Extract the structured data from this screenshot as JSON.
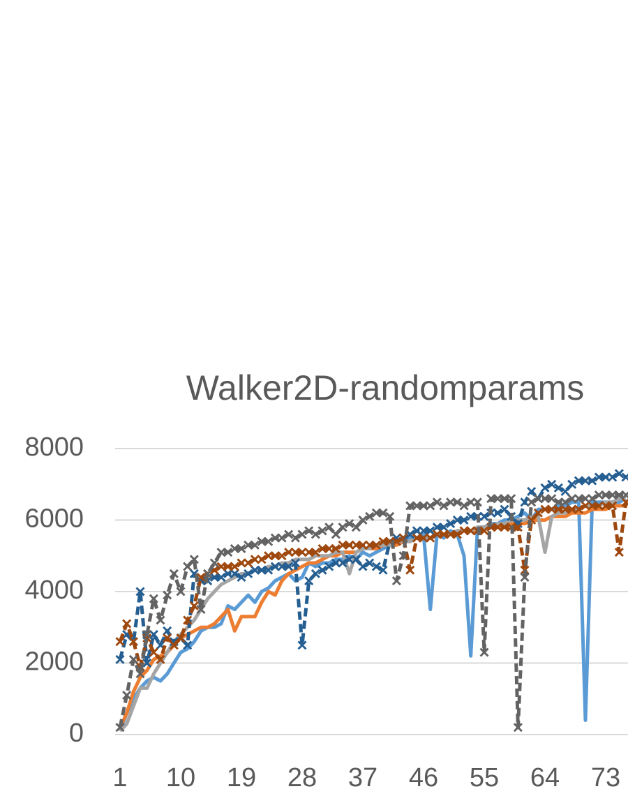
{
  "chart_data": {
    "type": "line",
    "title": "Walker2D-randomparams",
    "categories": [
      1,
      null,
      null,
      null,
      null,
      null,
      null,
      null,
      null,
      10,
      null,
      null,
      null,
      null,
      null,
      null,
      null,
      null,
      19,
      null,
      null,
      null,
      null,
      null,
      null,
      null,
      null,
      28,
      null,
      null,
      null,
      null,
      null,
      null,
      null,
      null,
      37,
      null,
      null,
      null,
      null,
      null,
      null,
      null,
      null,
      46,
      null,
      null,
      null,
      null,
      null,
      null,
      null,
      null,
      55,
      null,
      null,
      null,
      null,
      null,
      null,
      null,
      null,
      64,
      null,
      null,
      null,
      null,
      null,
      null,
      null,
      null,
      73,
      null,
      null,
      null
    ],
    "ylim": [
      0,
      8000
    ],
    "yticks": [
      0,
      2000,
      4000,
      6000,
      8000
    ],
    "grid": true,
    "series": [
      {
        "color": "#5b9bd5",
        "dashed": false,
        "marker": false,
        "values": [
          100,
          600,
          1000,
          1300,
          1500,
          1600,
          1500,
          1700,
          2000,
          2300,
          2400,
          2600,
          2900,
          3000,
          3000,
          3100,
          3600,
          3500,
          3700,
          3900,
          3700,
          4000,
          4100,
          4300,
          4400,
          4500,
          4300,
          4400,
          4800,
          4700,
          4800,
          4800,
          4900,
          4900,
          5000,
          4900,
          5100,
          5000,
          5100,
          5200,
          5300,
          5400,
          5500,
          5500,
          5500,
          5600,
          3500,
          5600,
          5500,
          5700,
          5600,
          5000,
          2200,
          5800,
          5800,
          5900,
          5900,
          6000,
          6000,
          6100,
          6200,
          6000,
          6300,
          6300,
          6300,
          6400,
          6400,
          6500,
          6500,
          400,
          6500,
          6500,
          6500,
          6500,
          6500,
          6600
        ]
      },
      {
        "color": "#ed7d31",
        "dashed": false,
        "marker": false,
        "values": [
          200,
          600,
          1200,
          1600,
          1800,
          2100,
          2200,
          2300,
          2500,
          2700,
          2800,
          2900,
          3000,
          3000,
          3100,
          3300,
          3500,
          2900,
          3300,
          3300,
          3300,
          3700,
          4000,
          3900,
          4300,
          4500,
          4600,
          4700,
          4800,
          4800,
          4900,
          5000,
          5000,
          5100,
          5100,
          5100,
          5200,
          5200,
          5200,
          5300,
          5300,
          5300,
          5400,
          5400,
          5500,
          5500,
          5500,
          5600,
          5600,
          5600,
          5700,
          5700,
          5700,
          5700,
          5800,
          5800,
          5800,
          5800,
          5900,
          5900,
          5900,
          6000,
          6000,
          6000,
          6100,
          6100,
          6100,
          6200,
          6200,
          6200,
          6300,
          6300,
          6300,
          6400,
          6400,
          6400
        ]
      },
      {
        "color": "#a5a5a5",
        "dashed": false,
        "marker": false,
        "values": [
          100,
          300,
          800,
          1300,
          1300,
          1700,
          2000,
          2300,
          2600,
          2800,
          3000,
          3200,
          3500,
          3800,
          4000,
          4200,
          4300,
          4400,
          4500,
          4500,
          4600,
          4600,
          4700,
          4700,
          4800,
          4800,
          4900,
          4900,
          4900,
          5000,
          5000,
          5000,
          5100,
          5100,
          4500,
          5100,
          5200,
          5200,
          5300,
          5300,
          5300,
          5400,
          5400,
          5400,
          5500,
          5500,
          5500,
          5600,
          5600,
          5600,
          5700,
          5700,
          5700,
          5800,
          5800,
          5800,
          5900,
          5900,
          6000,
          6000,
          6000,
          6100,
          6100,
          5100,
          6100,
          6200,
          6200,
          6300,
          6300,
          6400,
          6400,
          6400,
          6500,
          6500,
          6600,
          6600
        ]
      },
      {
        "color": "#255e91",
        "dashed": true,
        "marker": true,
        "values": [
          2100,
          2800,
          2600,
          4000,
          2000,
          2800,
          2500,
          2900,
          2600,
          2700,
          2500,
          4500,
          4300,
          4300,
          4400,
          4400,
          4500,
          4500,
          4400,
          4500,
          4600,
          4600,
          4600,
          4700,
          4700,
          4700,
          4800,
          2500,
          4300,
          4500,
          4600,
          4700,
          4800,
          4800,
          4900,
          4900,
          4700,
          4800,
          4700,
          4600,
          5400,
          5500,
          5500,
          5600,
          5700,
          5700,
          5700,
          5800,
          5800,
          5900,
          6000,
          6000,
          6100,
          6100,
          6100,
          6200,
          6200,
          6300,
          6100,
          5900,
          6500,
          6800,
          6600,
          6900,
          7000,
          6900,
          6800,
          7000,
          7100,
          7100,
          7100,
          7200,
          7200,
          7200,
          7300,
          7200
        ]
      },
      {
        "color": "#9e480e",
        "dashed": true,
        "marker": true,
        "values": [
          2600,
          3100,
          2600,
          1900,
          2700,
          2300,
          2100,
          2700,
          2500,
          2700,
          3200,
          3600,
          4400,
          4500,
          4600,
          4700,
          4700,
          4700,
          4800,
          4800,
          4900,
          4900,
          5000,
          5000,
          5000,
          5100,
          5100,
          5100,
          5100,
          5100,
          5200,
          5200,
          5200,
          5300,
          5300,
          5300,
          5300,
          5300,
          5300,
          5400,
          5400,
          5400,
          5500,
          4600,
          5500,
          5500,
          5500,
          5600,
          5600,
          5600,
          5600,
          5700,
          5700,
          5700,
          5700,
          5800,
          5800,
          5800,
          5800,
          5800,
          4600,
          6000,
          6200,
          6300,
          6300,
          6300,
          6300,
          6300,
          6300,
          6400,
          6400,
          6400,
          6400,
          6400,
          5100,
          6500
        ]
      },
      {
        "color": "#636363",
        "dashed": true,
        "marker": true,
        "values": [
          200,
          1100,
          2100,
          1700,
          2800,
          3800,
          3200,
          3900,
          4500,
          4000,
          4700,
          4900,
          3500,
          4500,
          4800,
          5100,
          5100,
          5200,
          5200,
          5300,
          5300,
          5400,
          5400,
          5500,
          5500,
          5600,
          5500,
          5600,
          5700,
          5600,
          5700,
          5800,
          5600,
          5800,
          5900,
          5800,
          6000,
          6100,
          6200,
          6200,
          6100,
          4300,
          5000,
          6400,
          6400,
          6400,
          6400,
          6500,
          6400,
          6500,
          6500,
          6400,
          6500,
          6500,
          2300,
          6600,
          6600,
          6600,
          6600,
          200,
          4400,
          6500,
          6600,
          6600,
          6600,
          6500,
          6500,
          6600,
          6600,
          6600,
          6600,
          6700,
          6700,
          6700,
          6700,
          6700
        ]
      }
    ]
  }
}
